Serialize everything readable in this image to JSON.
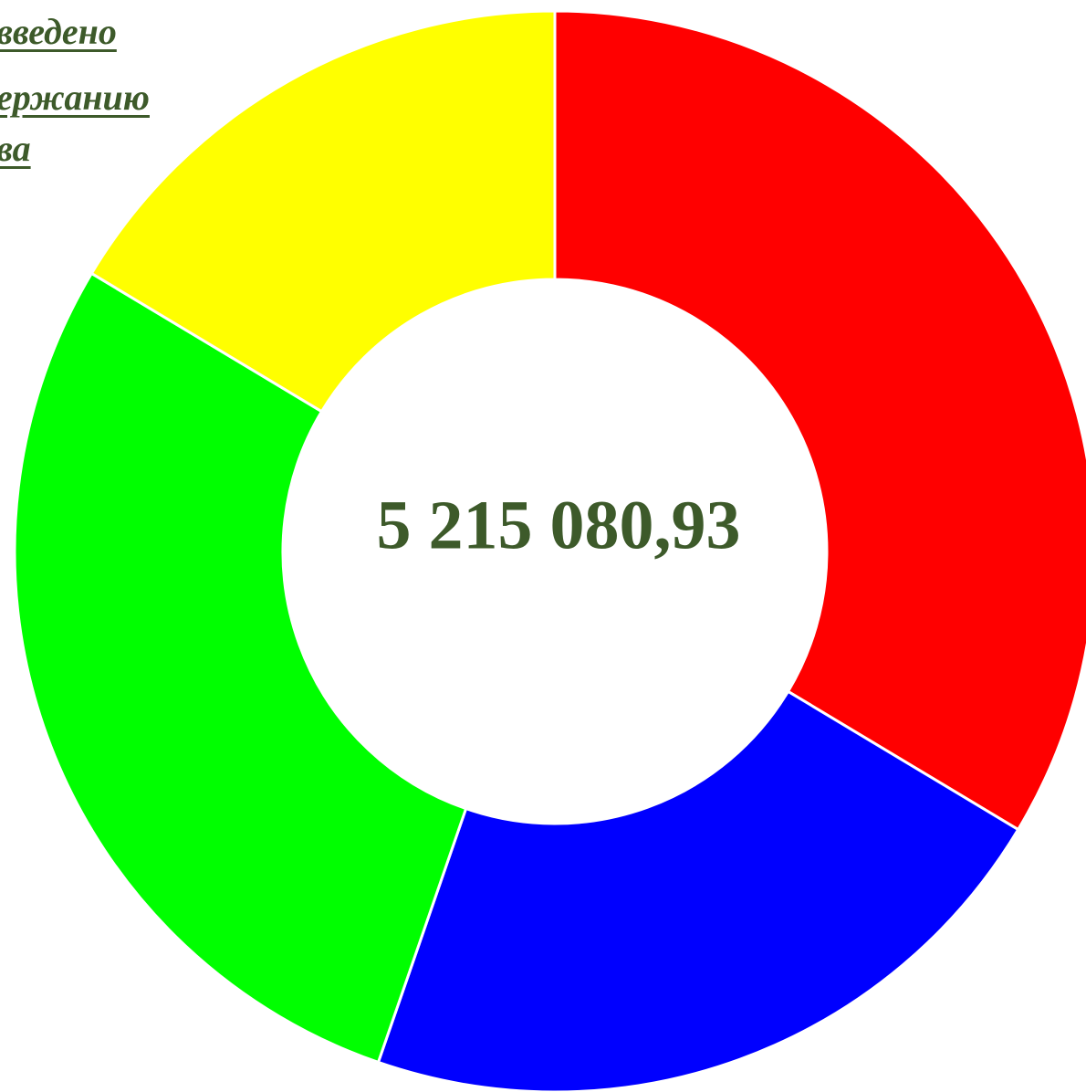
{
  "title_fragments": [
    "введено",
    "ержанию",
    "ва"
  ],
  "center_label": "5 215 080,93",
  "chart_data": {
    "type": "pie",
    "variant": "donut",
    "total": "5 215 080,93",
    "start": "12 o'clock",
    "direction": "clockwise",
    "slices": [
      {
        "share": 0.336,
        "color": "#ff0000"
      },
      {
        "share": 0.217,
        "color": "#0000ff"
      },
      {
        "share": 0.283,
        "color": "#00ff00"
      },
      {
        "share": 0.164,
        "color": "#ffff00"
      }
    ],
    "separator_color": "#ffffff",
    "title": "",
    "legend": "none"
  }
}
